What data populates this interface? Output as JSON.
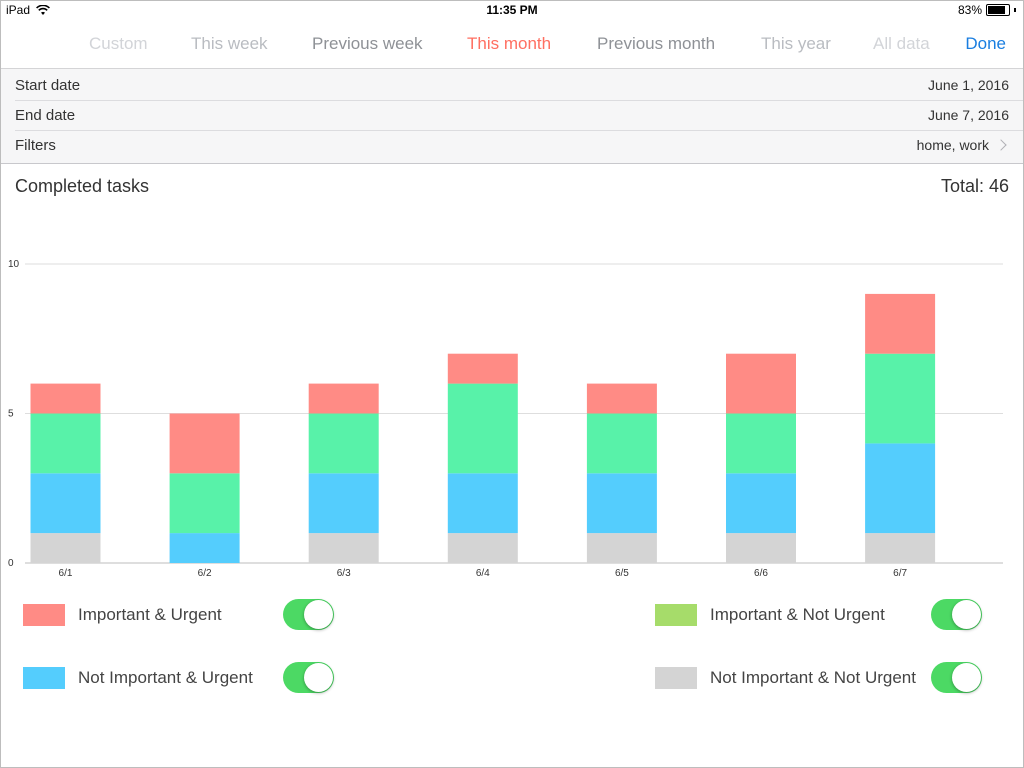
{
  "status_bar": {
    "device": "iPad",
    "time": "11:35 PM",
    "battery": "83%",
    "battery_level": 0.83
  },
  "range_tabs": [
    {
      "label": "Custom",
      "color": "#d2d4d8"
    },
    {
      "label": "This week",
      "color": "#b9bcc1"
    },
    {
      "label": "Previous week",
      "color": "#8e9196"
    },
    {
      "label": "This month",
      "color": "#ff6f61"
    },
    {
      "label": "Previous month",
      "color": "#8e9196"
    },
    {
      "label": "This year",
      "color": "#b9bcc1"
    },
    {
      "label": "All data",
      "color": "#d2d4d8"
    }
  ],
  "done_label": "Done",
  "panel": {
    "start_label": "Start date",
    "start_value": "June 1, 2016",
    "end_label": "End date",
    "end_value": "June 7, 2016",
    "filters_label": "Filters",
    "filters_value": "home, work"
  },
  "summary": {
    "title": "Completed tasks",
    "total": "Total: 46"
  },
  "chart_data": {
    "type": "bar",
    "stacked": true,
    "categories": [
      "6/1",
      "6/2",
      "6/3",
      "6/4",
      "6/5",
      "6/6",
      "6/7"
    ],
    "series": [
      {
        "name": "Not Important & Not Urgent",
        "color": "#d4d4d4",
        "values": [
          1,
          0,
          1,
          1,
          1,
          1,
          1
        ]
      },
      {
        "name": "Not Important & Urgent",
        "color": "#54cdfd",
        "values": [
          2,
          1,
          2,
          2,
          2,
          2,
          3
        ]
      },
      {
        "name": "Important & Not Urgent",
        "color": "#58f2a9",
        "values": [
          2,
          2,
          2,
          3,
          2,
          2,
          3
        ]
      },
      {
        "name": "Important & Urgent",
        "color": "#ff8b85",
        "values": [
          1,
          2,
          1,
          1,
          1,
          2,
          2
        ]
      }
    ],
    "yticks": [
      "0",
      "5",
      "10"
    ],
    "ylim": [
      0,
      10
    ],
    "grid": true
  },
  "legend": [
    {
      "label": "Important & Urgent",
      "color": "#ff8b85",
      "on": true
    },
    {
      "label": "Important & Not Urgent",
      "color": "#a6dc6a",
      "on": true
    },
    {
      "label": "Not Important & Urgent",
      "color": "#54cdfd",
      "on": true
    },
    {
      "label": "Not Important & Not Urgent",
      "color": "#d4d4d4",
      "on": true
    }
  ]
}
